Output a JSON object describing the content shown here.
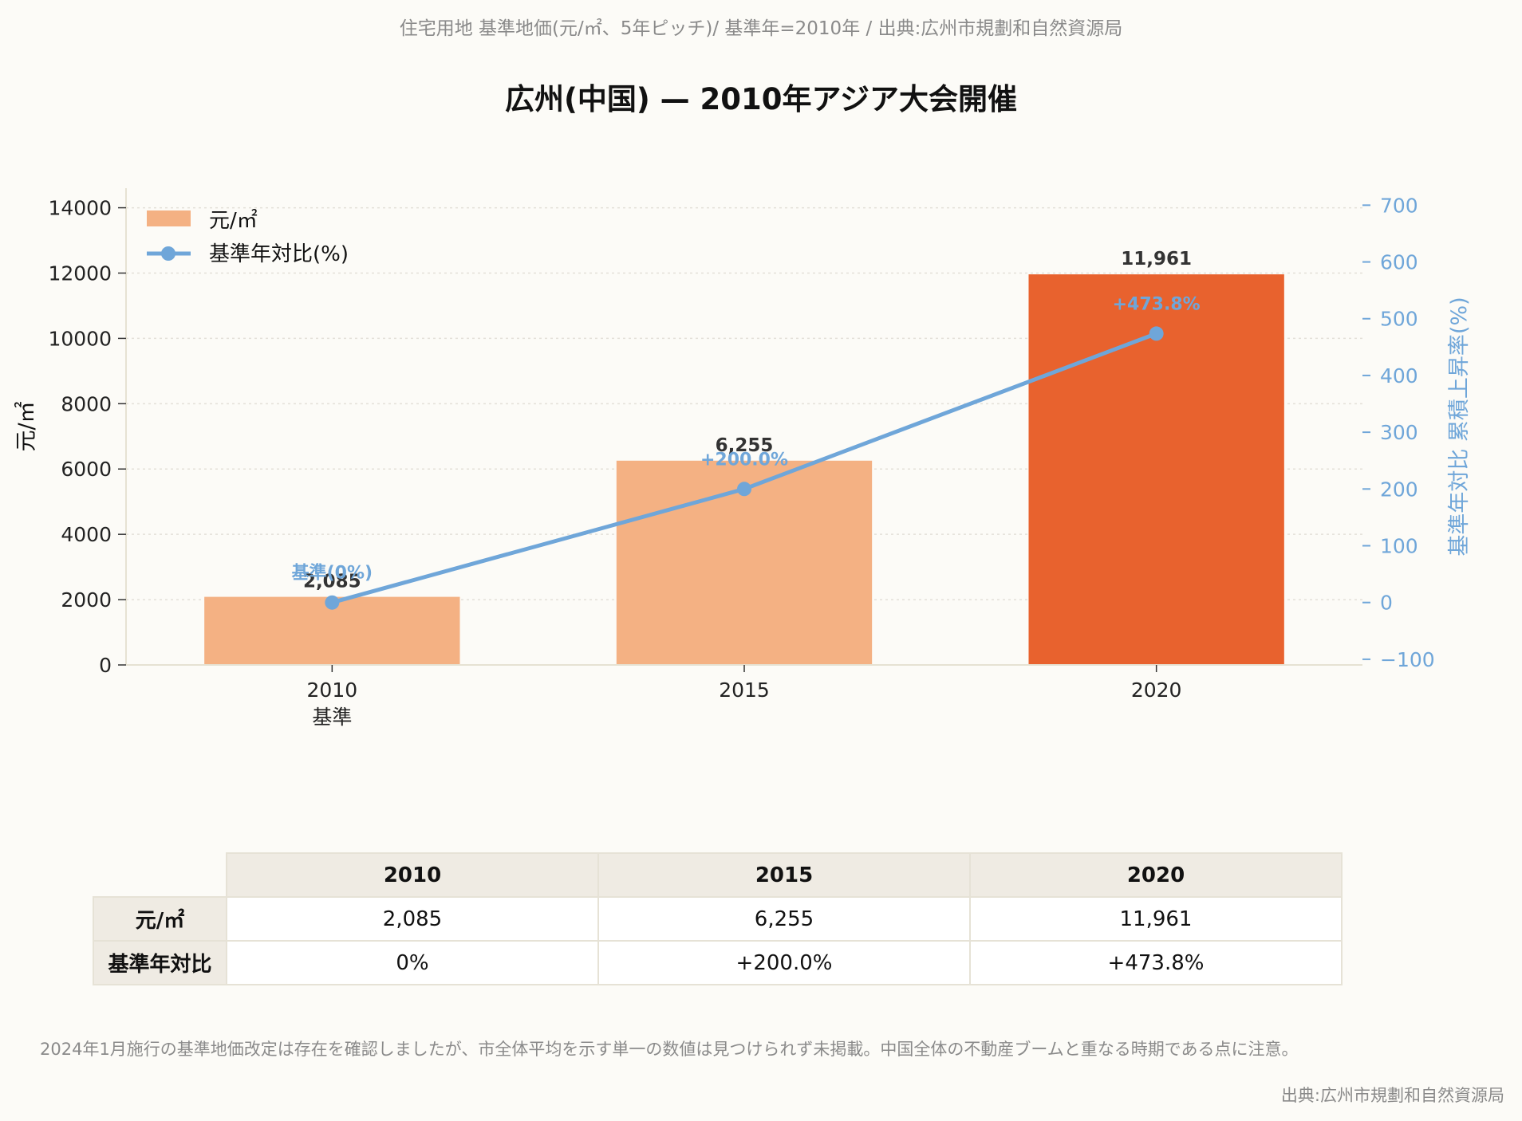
{
  "page": {
    "subtitle": "住宅用地 基準地価(元/㎡、5年ピッチ)/ 基準年=2010年 / 出典:広州市規劃和自然資源局",
    "title": "広州(中国) — 2010年アジア大会開催",
    "note": "2024年1月施行の基準地価改定は存在を確認しましたが、市全体平均を示す単一の数値は見つけられず未掲載。中国全体の不動産ブームと重なる時期である点に注意。",
    "credit": "出典:広州市規劃和自然資源局"
  },
  "chart_data": {
    "type": "bar",
    "categories": [
      "2010",
      "2015",
      "2020"
    ],
    "category_sublabels": [
      "基準",
      "",
      ""
    ],
    "series": [
      {
        "name": "元/㎡",
        "kind": "bar",
        "axis": "left",
        "values": [
          2085,
          6255,
          11961
        ],
        "labels": [
          "2,085",
          "6,255",
          "11,961"
        ],
        "colors": [
          "#f4b183",
          "#f4b183",
          "#e8622e"
        ]
      },
      {
        "name": "基準年対比(%)",
        "kind": "line",
        "axis": "right",
        "values": [
          0,
          200.0,
          473.8
        ],
        "labels": [
          "基準(0%)",
          "+200.0%",
          "+473.8%"
        ],
        "color": "#6fa6d9"
      }
    ],
    "ylabel": "元/㎡",
    "ylim": [
      0,
      14600
    ],
    "yticks": [
      0,
      2000,
      4000,
      6000,
      8000,
      10000,
      12000,
      14000
    ],
    "y2label": "基準年対比 累積上昇率(%)",
    "y2lim": [
      -110,
      730
    ],
    "y2ticks": [
      -100,
      0,
      100,
      200,
      300,
      400,
      500,
      600,
      700
    ],
    "legend": "top-left",
    "grid": "horizontal dotted"
  },
  "table": {
    "headers": [
      "2010",
      "2015",
      "2020"
    ],
    "rows": [
      {
        "label": "元/㎡",
        "cells": [
          "2,085",
          "6,255",
          "11,961"
        ]
      },
      {
        "label": "基準年対比",
        "cells": [
          "0%",
          "+200.0%",
          "+473.8%"
        ]
      }
    ]
  }
}
